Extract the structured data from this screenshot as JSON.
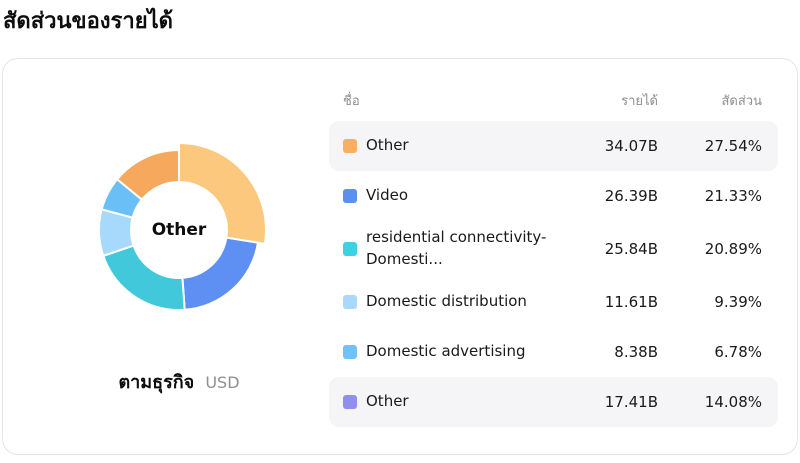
{
  "page_title": "สัดส่วนของรายได้",
  "card": {
    "center_label": "Other",
    "caption_bold": "ตามธุรกิจ",
    "caption_unit": "USD"
  },
  "table_headers": {
    "name": "ชื่อ",
    "revenue": "รายได้",
    "share": "สัดส่วน"
  },
  "colors": {
    "card_border": "#e5e4ef",
    "row_highlight": "#f5f5f7",
    "donut_stroke": "#ffffff"
  },
  "chart_data": {
    "type": "pie",
    "donut": true,
    "title": "สัดส่วนของรายได้",
    "subtitle": "ตามธุรกิจ",
    "unit": "USD",
    "center_label": "Other",
    "legend_position": "right-table",
    "segments": [
      {
        "label": "Other",
        "revenue": "34.07B",
        "value_billion": 34.07,
        "percent": 27.54,
        "share": "27.54%",
        "pie_color": "#FBC87E",
        "legend_color": "#F8AF63",
        "popped": true,
        "highlighted": true
      },
      {
        "label": "Video",
        "revenue": "26.39B",
        "value_billion": 26.39,
        "percent": 21.33,
        "share": "21.33%",
        "pie_color": "#5E8FF2",
        "legend_color": "#5B8FF0",
        "popped": false,
        "highlighted": false
      },
      {
        "label": "residential connectivity-Domesti...",
        "revenue": "25.84B",
        "value_billion": 25.84,
        "percent": 20.89,
        "share": "20.89%",
        "pie_color": "#42C8DB",
        "legend_color": "#3FD0E4",
        "popped": false,
        "highlighted": false
      },
      {
        "label": "Domestic distribution",
        "revenue": "11.61B",
        "value_billion": 11.61,
        "percent": 9.39,
        "share": "9.39%",
        "pie_color": "#A6D9FB",
        "legend_color": "#A6D9FB",
        "popped": false,
        "highlighted": false
      },
      {
        "label": "Domestic advertising",
        "revenue": "8.38B",
        "value_billion": 8.38,
        "percent": 6.78,
        "share": "6.78%",
        "pie_color": "#6AC0F6",
        "legend_color": "#6FC1F7",
        "popped": false,
        "highlighted": false
      },
      {
        "label": "Other",
        "revenue": "17.41B",
        "value_billion": 17.41,
        "percent": 14.08,
        "share": "14.08%",
        "pie_color": "#F6A85C",
        "legend_color": "#908FEE",
        "popped": false,
        "highlighted": true
      }
    ]
  }
}
